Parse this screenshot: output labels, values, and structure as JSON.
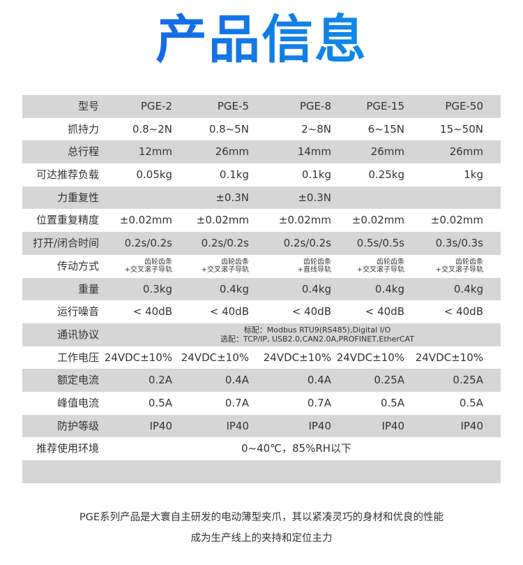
{
  "title": "产品信息",
  "title_colors": [
    "#1a52e6",
    "#0aa2e8"
  ],
  "row_colors": {
    "gray": "#d6d6d6",
    "white": "#ffffff"
  },
  "table": {
    "rows": [
      {
        "label": "型号",
        "values": [
          "PGE-2",
          "PGE-5",
          "PGE-8",
          "PGE-15",
          "PGE-50"
        ]
      },
      {
        "label": "抓持力",
        "values": [
          "0.8~2N",
          "0.8~5N",
          "2~8N",
          "6~15N",
          "15~50N"
        ]
      },
      {
        "label": "总行程",
        "values": [
          "12mm",
          "26mm",
          "14mm",
          "26mm",
          "26mm"
        ]
      },
      {
        "label": "可达推荐负载",
        "values": [
          "0.05kg",
          "0.1kg",
          "0.1kg",
          "0.25kg",
          "1kg"
        ]
      },
      {
        "label": "力重复性",
        "values": [
          "",
          "±0.3N",
          "±0.3N",
          "",
          ""
        ]
      },
      {
        "label": "位置重复精度",
        "values": [
          "±0.02mm",
          "±0.02mm",
          "±0.02mm",
          "±0.02mm",
          "±0.02mm"
        ]
      },
      {
        "label": "打开/闭合时间",
        "values": [
          "0.2s/0.2s",
          "0.2s/0.2s",
          "0.2s/0.2s",
          "0.5s/0.5s",
          "0.3s/0.3s"
        ]
      },
      {
        "label": "传动方式",
        "values": [
          [
            "齿轮齿条",
            "+交叉滚子导轨"
          ],
          [
            "齿轮齿条",
            "+交叉滚子导轨"
          ],
          [
            "齿轮齿条",
            "+直线导轨"
          ],
          [
            "齿轮齿条",
            "+交叉滚子导轨"
          ],
          [
            "齿轮齿条",
            "+交叉滚子导轨"
          ]
        ]
      },
      {
        "label": "重量",
        "values": [
          "0.3kg",
          "0.4kg",
          "0.4kg",
          "0.4kg",
          "0.4kg"
        ]
      },
      {
        "label": "运行噪音",
        "values": [
          "< 40dB",
          "< 40dB",
          "< 40dB",
          "< 40dB",
          "< 40dB"
        ]
      },
      {
        "label": "通讯协议",
        "lines": [
          "标配：Modbus RTU9(RS485),Digital I/O",
          "选配：TCP/IP, USB2.0,CAN2.0A,PROFINET,EtherCAT"
        ]
      },
      {
        "label": "工作电压",
        "values": [
          "24VDC±10%",
          "24VDC±10%",
          "24VDC±10%",
          "24VDC±10%",
          "24VDC±10%"
        ]
      },
      {
        "label": "额定电流",
        "values": [
          "0.2A",
          "0.4A",
          "0.4A",
          "0.25A",
          "0.25A"
        ]
      },
      {
        "label": "峰值电流",
        "values": [
          "0.5A",
          "0.7A",
          "0.7A",
          "0.5A",
          "0.5A"
        ]
      },
      {
        "label": "防护等级",
        "values": [
          "IP40",
          "IP40",
          "IP40",
          "IP40",
          "IP40"
        ]
      },
      {
        "label": "推荐使用环境",
        "value": "0~40℃，85%RH以下"
      }
    ]
  },
  "footer": {
    "line1": "PGE系列产品是大寰自主研发的电动薄型夹爪，其以紧凑灵巧的身材和优良的性能",
    "line2": "成为生产线上的夹持和定位主力"
  }
}
